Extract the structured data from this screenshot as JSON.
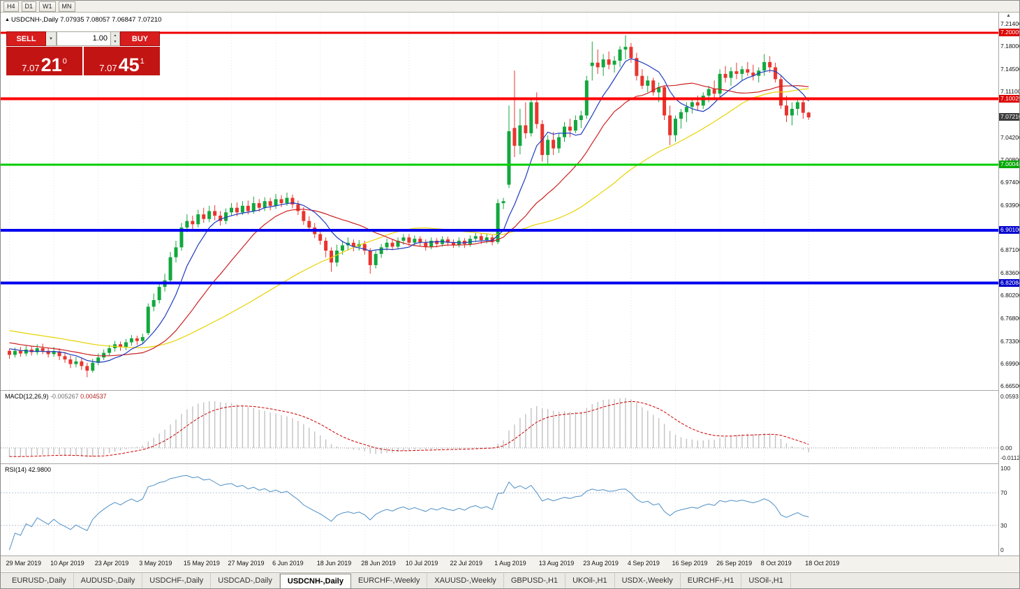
{
  "toolbar": {
    "timeframes": [
      "H4",
      "D1",
      "W1",
      "MN"
    ]
  },
  "icons": {
    "collapse": "▲",
    "dropdown": "▼",
    "spin_up": "▲",
    "spin_down": "▼",
    "scroll_mark": "▲"
  },
  "trade_panel": {
    "sell": "SELL",
    "buy": "BUY",
    "volume": "1.00",
    "bid": {
      "small": "7.07",
      "big": "21",
      "sup": "0"
    },
    "ask": {
      "small": "7.07",
      "big": "45",
      "sup": "1"
    },
    "button_color": "#d81d1d",
    "quote_color": "#c31414"
  },
  "chart": {
    "type": "candlestick",
    "title_symbol": "USDCNH-,Daily",
    "title_ohlc": "7.07935 7.08057 7.06847 7.07210",
    "colors": {
      "bull": "#12a73e",
      "bear": "#e8352e",
      "ma_fast": "#1f3bbf",
      "ma_mid": "#cc2020",
      "ma_slow": "#e8d200",
      "grid": "#e4e4e4"
    },
    "price_range": {
      "max": 7.231,
      "min": 6.6585
    },
    "price_ticks": [
      "7.21400",
      "7.18000",
      "7.14500",
      "7.11100",
      "7.04200",
      "7.00800",
      "6.97400",
      "6.93900",
      "6.87100",
      "6.83600",
      "6.80200",
      "6.76800",
      "6.73300",
      "6.69900",
      "6.66500"
    ],
    "hlines": [
      {
        "price": 7.20009,
        "color": "#ee0000",
        "width": 3
      },
      {
        "price": 7.10029,
        "color": "#ff0000",
        "width": 4
      },
      {
        "price": 7.00048,
        "color": "#00cc00",
        "width": 3
      },
      {
        "price": 6.901,
        "color": "#0000ee",
        "width": 4
      },
      {
        "price": 6.82084,
        "color": "#0000ee",
        "width": 4
      }
    ],
    "badges": [
      {
        "price": 7.20009,
        "label": "7.20009",
        "color": "#dd0000"
      },
      {
        "price": 7.10029,
        "label": "7.10029",
        "color": "#dd0000"
      },
      {
        "price": 7.0721,
        "label": "7.07210",
        "color": "#3c3c3c"
      },
      {
        "price": 7.00048,
        "label": "7.00048",
        "color": "#00a800"
      },
      {
        "price": 6.901,
        "label": "6.90100",
        "color": "#0000cc"
      },
      {
        "price": 6.82084,
        "label": "6.82084",
        "color": "#0000cc"
      }
    ],
    "date_labels": [
      "29 Mar 2019",
      "10 Apr 2019",
      "23 Apr 2019",
      "3 May 2019",
      "15 May 2019",
      "27 May 2019",
      "6 Jun 2019",
      "18 Jun 2019",
      "28 Jun 2019",
      "10 Jul 2019",
      "22 Jul 2019",
      "1 Aug 2019",
      "13 Aug 2019",
      "23 Aug 2019",
      "4 Sep 2019",
      "16 Sep 2019",
      "26 Sep 2019",
      "8 Oct 2019",
      "18 Oct 2019"
    ],
    "label_step": 8,
    "warmup": {
      "days": 50,
      "start_price": 6.79
    },
    "ma_periods": {
      "fast": 8,
      "mid": 20,
      "slow": 45
    },
    "ohlc": [
      [
        6.718,
        6.7215,
        6.706,
        6.712
      ],
      [
        6.712,
        6.723,
        6.708,
        6.718
      ],
      [
        6.718,
        6.724,
        6.709,
        6.714
      ],
      [
        6.714,
        6.726,
        6.71,
        6.72
      ],
      [
        6.72,
        6.725,
        6.711,
        6.716
      ],
      [
        6.716,
        6.728,
        6.712,
        6.722
      ],
      [
        6.722,
        6.729,
        6.713,
        6.718
      ],
      [
        6.718,
        6.723,
        6.708,
        6.713
      ],
      [
        6.713,
        6.724,
        6.709,
        6.717
      ],
      [
        6.717,
        6.722,
        6.704,
        6.71
      ],
      [
        6.71,
        6.716,
        6.7,
        6.705
      ],
      [
        6.705,
        6.711,
        6.692,
        6.698
      ],
      [
        6.698,
        6.709,
        6.693,
        6.702
      ],
      [
        6.702,
        6.707,
        6.689,
        6.695
      ],
      [
        6.695,
        6.7,
        6.678,
        6.688
      ],
      [
        6.688,
        6.706,
        6.685,
        6.7
      ],
      [
        6.7,
        6.714,
        6.696,
        6.708
      ],
      [
        6.708,
        6.72,
        6.704,
        6.715
      ],
      [
        6.715,
        6.727,
        6.711,
        6.722
      ],
      [
        6.722,
        6.733,
        6.717,
        6.728
      ],
      [
        6.728,
        6.732,
        6.718,
        6.724
      ],
      [
        6.724,
        6.736,
        6.719,
        6.731
      ],
      [
        6.731,
        6.742,
        6.726,
        6.737
      ],
      [
        6.737,
        6.741,
        6.727,
        6.733
      ],
      [
        6.733,
        6.744,
        6.729,
        6.739
      ],
      [
        6.745,
        6.79,
        6.742,
        6.785
      ],
      [
        6.785,
        6.805,
        6.778,
        6.795
      ],
      [
        6.795,
        6.823,
        6.79,
        6.815
      ],
      [
        6.815,
        6.835,
        6.808,
        6.825
      ],
      [
        6.825,
        6.868,
        6.82,
        6.86
      ],
      [
        6.86,
        6.885,
        6.852,
        6.875
      ],
      [
        6.875,
        6.912,
        6.87,
        6.905
      ],
      [
        6.905,
        6.925,
        6.898,
        6.915
      ],
      [
        6.915,
        6.923,
        6.902,
        6.91
      ],
      [
        6.91,
        6.932,
        6.905,
        6.925
      ],
      [
        6.925,
        6.935,
        6.912,
        6.918
      ],
      [
        6.918,
        6.938,
        6.913,
        6.93
      ],
      [
        6.93,
        6.939,
        6.916,
        6.923
      ],
      [
        6.923,
        6.93,
        6.908,
        6.915
      ],
      [
        6.915,
        6.934,
        6.91,
        6.928
      ],
      [
        6.928,
        6.942,
        6.923,
        6.935
      ],
      [
        6.935,
        6.943,
        6.922,
        6.928
      ],
      [
        6.928,
        6.945,
        6.924,
        6.938
      ],
      [
        6.938,
        6.946,
        6.925,
        6.93
      ],
      [
        6.93,
        6.952,
        6.926,
        6.942
      ],
      [
        6.942,
        6.948,
        6.929,
        6.935
      ],
      [
        6.935,
        6.951,
        6.93,
        6.945
      ],
      [
        6.945,
        6.95,
        6.931,
        6.938
      ],
      [
        6.938,
        6.956,
        6.933,
        6.948
      ],
      [
        6.948,
        6.954,
        6.936,
        6.942
      ],
      [
        6.942,
        6.958,
        6.938,
        6.95
      ],
      [
        6.95,
        6.955,
        6.934,
        6.94
      ],
      [
        6.94,
        6.946,
        6.924,
        6.93
      ],
      [
        6.93,
        6.936,
        6.909,
        6.915
      ],
      [
        6.915,
        6.922,
        6.899,
        6.905
      ],
      [
        6.905,
        6.912,
        6.889,
        6.895
      ],
      [
        6.895,
        6.902,
        6.879,
        6.885
      ],
      [
        6.885,
        6.89,
        6.86,
        6.87
      ],
      [
        6.87,
        6.875,
        6.838,
        6.852
      ],
      [
        6.852,
        6.879,
        6.846,
        6.87
      ],
      [
        6.87,
        6.885,
        6.864,
        6.878
      ],
      [
        6.878,
        6.89,
        6.87,
        6.882
      ],
      [
        6.882,
        6.887,
        6.869,
        6.876
      ],
      [
        6.876,
        6.886,
        6.87,
        6.88
      ],
      [
        6.88,
        6.885,
        6.864,
        6.87
      ],
      [
        6.87,
        6.874,
        6.835,
        6.848
      ],
      [
        6.848,
        6.87,
        6.843,
        6.865
      ],
      [
        6.865,
        6.88,
        6.859,
        6.875
      ],
      [
        6.875,
        6.888,
        6.87,
        6.882
      ],
      [
        6.882,
        6.887,
        6.871,
        6.876
      ],
      [
        6.876,
        6.89,
        6.872,
        6.885
      ],
      [
        6.885,
        6.895,
        6.879,
        6.89
      ],
      [
        6.89,
        6.895,
        6.877,
        6.882
      ],
      [
        6.882,
        6.893,
        6.878,
        6.888
      ],
      [
        6.888,
        6.892,
        6.876,
        6.882
      ],
      [
        6.882,
        6.887,
        6.87,
        6.876
      ],
      [
        6.876,
        6.89,
        6.872,
        6.885
      ],
      [
        6.885,
        6.889,
        6.875,
        6.88
      ],
      [
        6.88,
        6.892,
        6.876,
        6.887
      ],
      [
        6.887,
        6.891,
        6.877,
        6.882
      ],
      [
        6.882,
        6.887,
        6.874,
        6.879
      ],
      [
        6.879,
        6.89,
        6.875,
        6.885
      ],
      [
        6.885,
        6.889,
        6.874,
        6.88
      ],
      [
        6.88,
        6.893,
        6.876,
        6.888
      ],
      [
        6.888,
        6.897,
        6.883,
        6.892
      ],
      [
        6.892,
        6.896,
        6.88,
        6.886
      ],
      [
        6.886,
        6.895,
        6.881,
        6.89
      ],
      [
        6.89,
        6.894,
        6.878,
        6.883
      ],
      [
        6.883,
        6.948,
        6.88,
        6.942
      ],
      [
        6.942,
        6.95,
        6.933,
        6.945
      ],
      [
        6.97,
        7.09,
        6.965,
        7.051
      ],
      [
        7.056,
        7.143,
        7.012,
        7.029
      ],
      [
        7.029,
        7.085,
        7.016,
        7.06
      ],
      [
        7.06,
        7.095,
        7.04,
        7.048
      ],
      [
        7.048,
        7.1,
        7.043,
        7.095
      ],
      [
        7.095,
        7.11,
        7.055,
        7.062
      ],
      [
        7.062,
        7.068,
        7.005,
        7.015
      ],
      [
        7.015,
        7.045,
        7.002,
        7.038
      ],
      [
        7.038,
        7.05,
        7.015,
        7.025
      ],
      [
        7.025,
        7.048,
        7.018,
        7.042
      ],
      [
        7.042,
        7.065,
        7.035,
        7.058
      ],
      [
        7.058,
        7.07,
        7.042,
        7.052
      ],
      [
        7.052,
        7.075,
        7.048,
        7.068
      ],
      [
        7.068,
        7.082,
        7.056,
        7.075
      ],
      [
        7.075,
        7.135,
        7.07,
        7.128
      ],
      [
        7.15,
        7.187,
        7.128,
        7.155
      ],
      [
        7.155,
        7.175,
        7.138,
        7.148
      ],
      [
        7.148,
        7.168,
        7.135,
        7.16
      ],
      [
        7.16,
        7.172,
        7.145,
        7.152
      ],
      [
        7.152,
        7.165,
        7.14,
        7.158
      ],
      [
        7.158,
        7.18,
        7.148,
        7.175
      ],
      [
        7.175,
        7.1965,
        7.16,
        7.179
      ],
      [
        7.179,
        7.185,
        7.155,
        7.162
      ],
      [
        7.162,
        7.17,
        7.128,
        7.135
      ],
      [
        7.135,
        7.145,
        7.115,
        7.12
      ],
      [
        7.12,
        7.135,
        7.11,
        7.128
      ],
      [
        7.128,
        7.132,
        7.105,
        7.11
      ],
      [
        7.11,
        7.125,
        7.095,
        7.118
      ],
      [
        7.118,
        7.12,
        7.068,
        7.075
      ],
      [
        7.075,
        7.09,
        7.03,
        7.045
      ],
      [
        7.045,
        7.075,
        7.035,
        7.07
      ],
      [
        7.07,
        7.085,
        7.055,
        7.08
      ],
      [
        7.08,
        7.095,
        7.065,
        7.088
      ],
      [
        7.088,
        7.1,
        7.078,
        7.095
      ],
      [
        7.095,
        7.105,
        7.082,
        7.09
      ],
      [
        7.09,
        7.11,
        7.085,
        7.105
      ],
      [
        7.105,
        7.12,
        7.095,
        7.115
      ],
      [
        7.115,
        7.128,
        7.102,
        7.108
      ],
      [
        7.108,
        7.145,
        7.1,
        7.138
      ],
      [
        7.138,
        7.15,
        7.125,
        7.132
      ],
      [
        7.132,
        7.148,
        7.12,
        7.142
      ],
      [
        7.142,
        7.155,
        7.13,
        7.138
      ],
      [
        7.138,
        7.15,
        7.128,
        7.145
      ],
      [
        7.145,
        7.156,
        7.135,
        7.14
      ],
      [
        7.14,
        7.152,
        7.128,
        7.135
      ],
      [
        7.135,
        7.148,
        7.125,
        7.143
      ],
      [
        7.143,
        7.168,
        7.135,
        7.156
      ],
      [
        7.156,
        7.165,
        7.14,
        7.148
      ],
      [
        7.148,
        7.155,
        7.125,
        7.13
      ],
      [
        7.13,
        7.135,
        7.085,
        7.09
      ],
      [
        7.09,
        7.105,
        7.065,
        7.075
      ],
      [
        7.075,
        7.095,
        7.06,
        7.085
      ],
      [
        7.085,
        7.1,
        7.075,
        7.095
      ],
      [
        7.095,
        7.101,
        7.07,
        7.079
      ],
      [
        7.07935,
        7.08057,
        7.06847,
        7.0721
      ]
    ]
  },
  "macd": {
    "label": "MACD(12,26,9)",
    "value_main": "-0.005267",
    "value_signal": "0.004537",
    "axis": [
      {
        "v": 0.0593,
        "t": "0.0593"
      },
      {
        "v": 0,
        "t": "0.00"
      },
      {
        "v": -0.01128,
        "t": "-0.01128"
      }
    ],
    "range": {
      "max": 0.0593,
      "min": -0.01128
    },
    "hist_color": "#c2c2c2",
    "signal_color": "#cc0000"
  },
  "rsi": {
    "label": "RSI(14)",
    "value": "42.9800",
    "period": 14,
    "axis": [
      {
        "v": 100,
        "t": "100"
      },
      {
        "v": 70,
        "t": "70"
      },
      {
        "v": 30,
        "t": "30"
      },
      {
        "v": 0,
        "t": "0"
      }
    ],
    "levels": [
      30,
      70
    ],
    "line_color": "#4d8fc6"
  },
  "tabs": [
    {
      "label": "EURUSD-,Daily",
      "active": false
    },
    {
      "label": "AUDUSD-,Daily",
      "active": false
    },
    {
      "label": "USDCHF-,Daily",
      "active": false
    },
    {
      "label": "USDCAD-,Daily",
      "active": false
    },
    {
      "label": "USDCNH-,Daily",
      "active": true
    },
    {
      "label": "EURCHF-,Weekly",
      "active": false
    },
    {
      "label": "XAUUSD-,Weekly",
      "active": false
    },
    {
      "label": "GBPUSD-,H1",
      "active": false
    },
    {
      "label": "UKOil-,H1",
      "active": false
    },
    {
      "label": "USDX-,Weekly",
      "active": false
    },
    {
      "label": "EURCHF-,H1",
      "active": false
    },
    {
      "label": "USOil-,H1",
      "active": false
    }
  ]
}
